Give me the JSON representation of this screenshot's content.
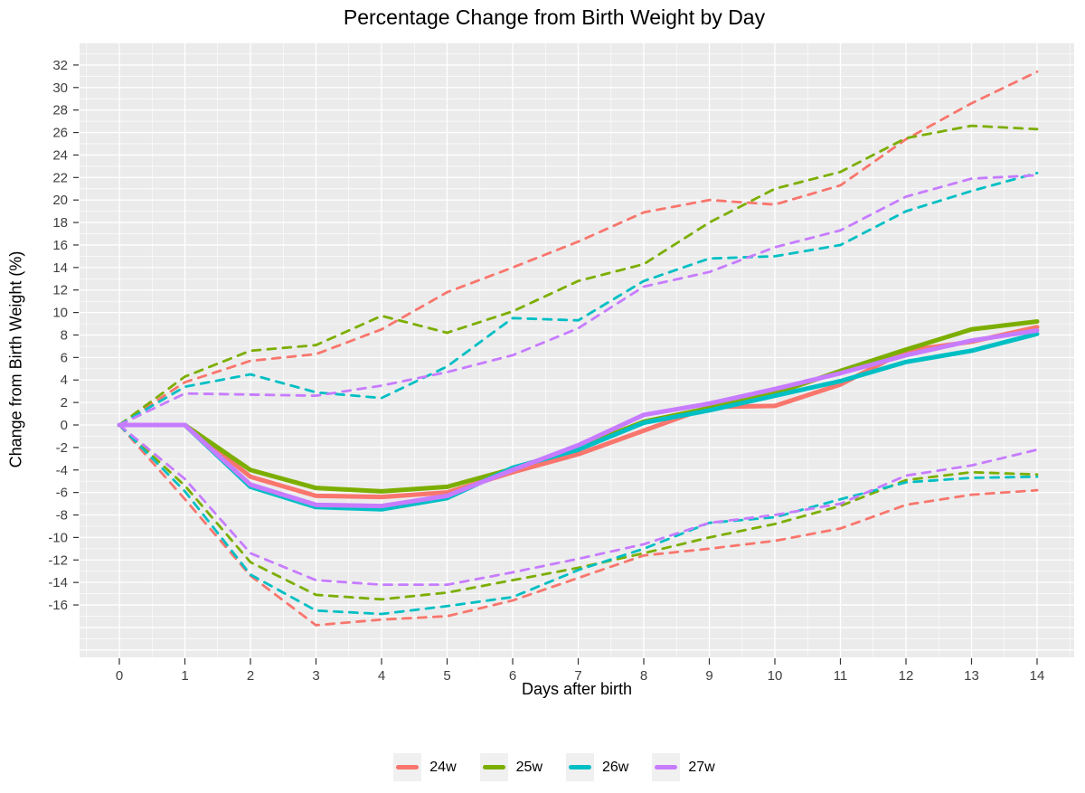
{
  "title": "Percentage Change from Birth Weight by Day",
  "x_axis": {
    "label": "Days after birth",
    "ticks": [
      0,
      1,
      2,
      3,
      4,
      5,
      6,
      7,
      8,
      9,
      10,
      11,
      12,
      13,
      14
    ]
  },
  "y_axis": {
    "label": "Change from Birth Weight (%)",
    "ticks": [
      -16,
      -14,
      -12,
      -10,
      -8,
      -6,
      -4,
      -2,
      0,
      2,
      4,
      6,
      8,
      10,
      12,
      14,
      16,
      18,
      20,
      22,
      24,
      26,
      28,
      30,
      32
    ]
  },
  "legend": [
    {
      "label": "24w",
      "color": "#F8766D"
    },
    {
      "label": "25w",
      "color": "#7CAE00"
    },
    {
      "label": "26w",
      "color": "#00BFC4"
    },
    {
      "label": "27w",
      "color": "#C77CFF"
    }
  ],
  "panel": {
    "background": "#EBEBEB",
    "grid_color": "#FFFFFF",
    "tick_color": "#333333",
    "tick_label_color": "#404040"
  },
  "chart_data": {
    "type": "line",
    "title": "Percentage Change from Birth Weight by Day",
    "xlabel": "Days after birth",
    "ylabel": "Change from Birth Weight (%)",
    "x": [
      0,
      1,
      2,
      3,
      4,
      5,
      6,
      7,
      8,
      9,
      10,
      11,
      12,
      13,
      14
    ],
    "xlim": [
      -0.6,
      14.56
    ],
    "ylim": [
      -20.7,
      34.0
    ],
    "grid": "white major (every 2) + minor gridlines on gray panel",
    "legend_position": "bottom",
    "series": [
      {
        "name": "24w mean",
        "group": "24w",
        "style": "solid",
        "color": "#F8766D",
        "values": [
          0,
          0,
          -4.6,
          -6.3,
          -6.4,
          -6.0,
          -4.2,
          -2.6,
          -0.5,
          1.6,
          1.7,
          3.6,
          6.6,
          7.4,
          8.7
        ]
      },
      {
        "name": "24w upper",
        "group": "24w",
        "style": "dashed",
        "color": "#F8766D",
        "values": [
          0,
          3.8,
          5.7,
          6.3,
          8.5,
          11.8,
          14.0,
          16.3,
          18.9,
          20.0,
          19.6,
          21.3,
          25.4,
          28.6,
          31.4
        ]
      },
      {
        "name": "24w lower",
        "group": "24w",
        "style": "dashed",
        "color": "#F8766D",
        "values": [
          0,
          -6.6,
          -13.4,
          -17.8,
          -17.3,
          -17.0,
          -15.6,
          -13.6,
          -11.6,
          -11.0,
          -10.3,
          -9.2,
          -7.1,
          -6.2,
          -5.8
        ]
      },
      {
        "name": "25w mean",
        "group": "25w",
        "style": "solid",
        "color": "#7CAE00",
        "values": [
          0,
          0,
          -4.0,
          -5.6,
          -5.9,
          -5.5,
          -3.9,
          -2.0,
          0.3,
          1.5,
          2.8,
          4.8,
          6.7,
          8.5,
          9.2
        ]
      },
      {
        "name": "25w upper",
        "group": "25w",
        "style": "dashed",
        "color": "#7CAE00",
        "values": [
          0,
          4.3,
          6.6,
          7.1,
          9.7,
          8.2,
          10.1,
          12.8,
          14.3,
          18.0,
          21.0,
          22.5,
          25.5,
          26.6,
          26.3
        ]
      },
      {
        "name": "25w lower",
        "group": "25w",
        "style": "dashed",
        "color": "#7CAE00",
        "values": [
          0,
          -5.4,
          -12.2,
          -15.1,
          -15.5,
          -14.9,
          -13.8,
          -12.7,
          -11.4,
          -10.0,
          -8.8,
          -7.2,
          -4.9,
          -4.2,
          -4.4
        ]
      },
      {
        "name": "26w mean",
        "group": "26w",
        "style": "solid",
        "color": "#00BFC4",
        "values": [
          0,
          0,
          -5.5,
          -7.3,
          -7.5,
          -6.5,
          -3.8,
          -2.2,
          0.2,
          1.3,
          2.6,
          3.9,
          5.6,
          6.6,
          8.1
        ]
      },
      {
        "name": "26w upper",
        "group": "26w",
        "style": "dashed",
        "color": "#00BFC4",
        "values": [
          0,
          3.4,
          4.5,
          2.9,
          2.4,
          5.2,
          9.5,
          9.3,
          12.8,
          14.8,
          15.0,
          16.0,
          19.0,
          20.8,
          22.4
        ]
      },
      {
        "name": "26w lower",
        "group": "26w",
        "style": "dashed",
        "color": "#00BFC4",
        "values": [
          0,
          -5.9,
          -13.3,
          -16.5,
          -16.8,
          -16.1,
          -15.3,
          -12.9,
          -11.0,
          -8.7,
          -8.2,
          -6.6,
          -5.1,
          -4.7,
          -4.6
        ]
      },
      {
        "name": "27w mean",
        "group": "27w",
        "style": "solid",
        "color": "#C77CFF",
        "values": [
          0,
          0,
          -5.3,
          -7.1,
          -7.2,
          -6.3,
          -4.0,
          -1.8,
          0.9,
          1.9,
          3.2,
          4.6,
          6.2,
          7.5,
          8.4
        ]
      },
      {
        "name": "27w upper",
        "group": "27w",
        "style": "dashed",
        "color": "#C77CFF",
        "values": [
          0,
          2.8,
          2.7,
          2.6,
          3.5,
          4.7,
          6.2,
          8.6,
          12.3,
          13.6,
          15.8,
          17.3,
          20.3,
          21.9,
          22.2
        ]
      },
      {
        "name": "27w lower",
        "group": "27w",
        "style": "dashed",
        "color": "#C77CFF",
        "values": [
          0,
          -4.8,
          -11.4,
          -13.8,
          -14.2,
          -14.2,
          -13.1,
          -11.9,
          -10.6,
          -8.7,
          -8.0,
          -7.0,
          -4.5,
          -3.6,
          -2.2
        ]
      }
    ]
  }
}
